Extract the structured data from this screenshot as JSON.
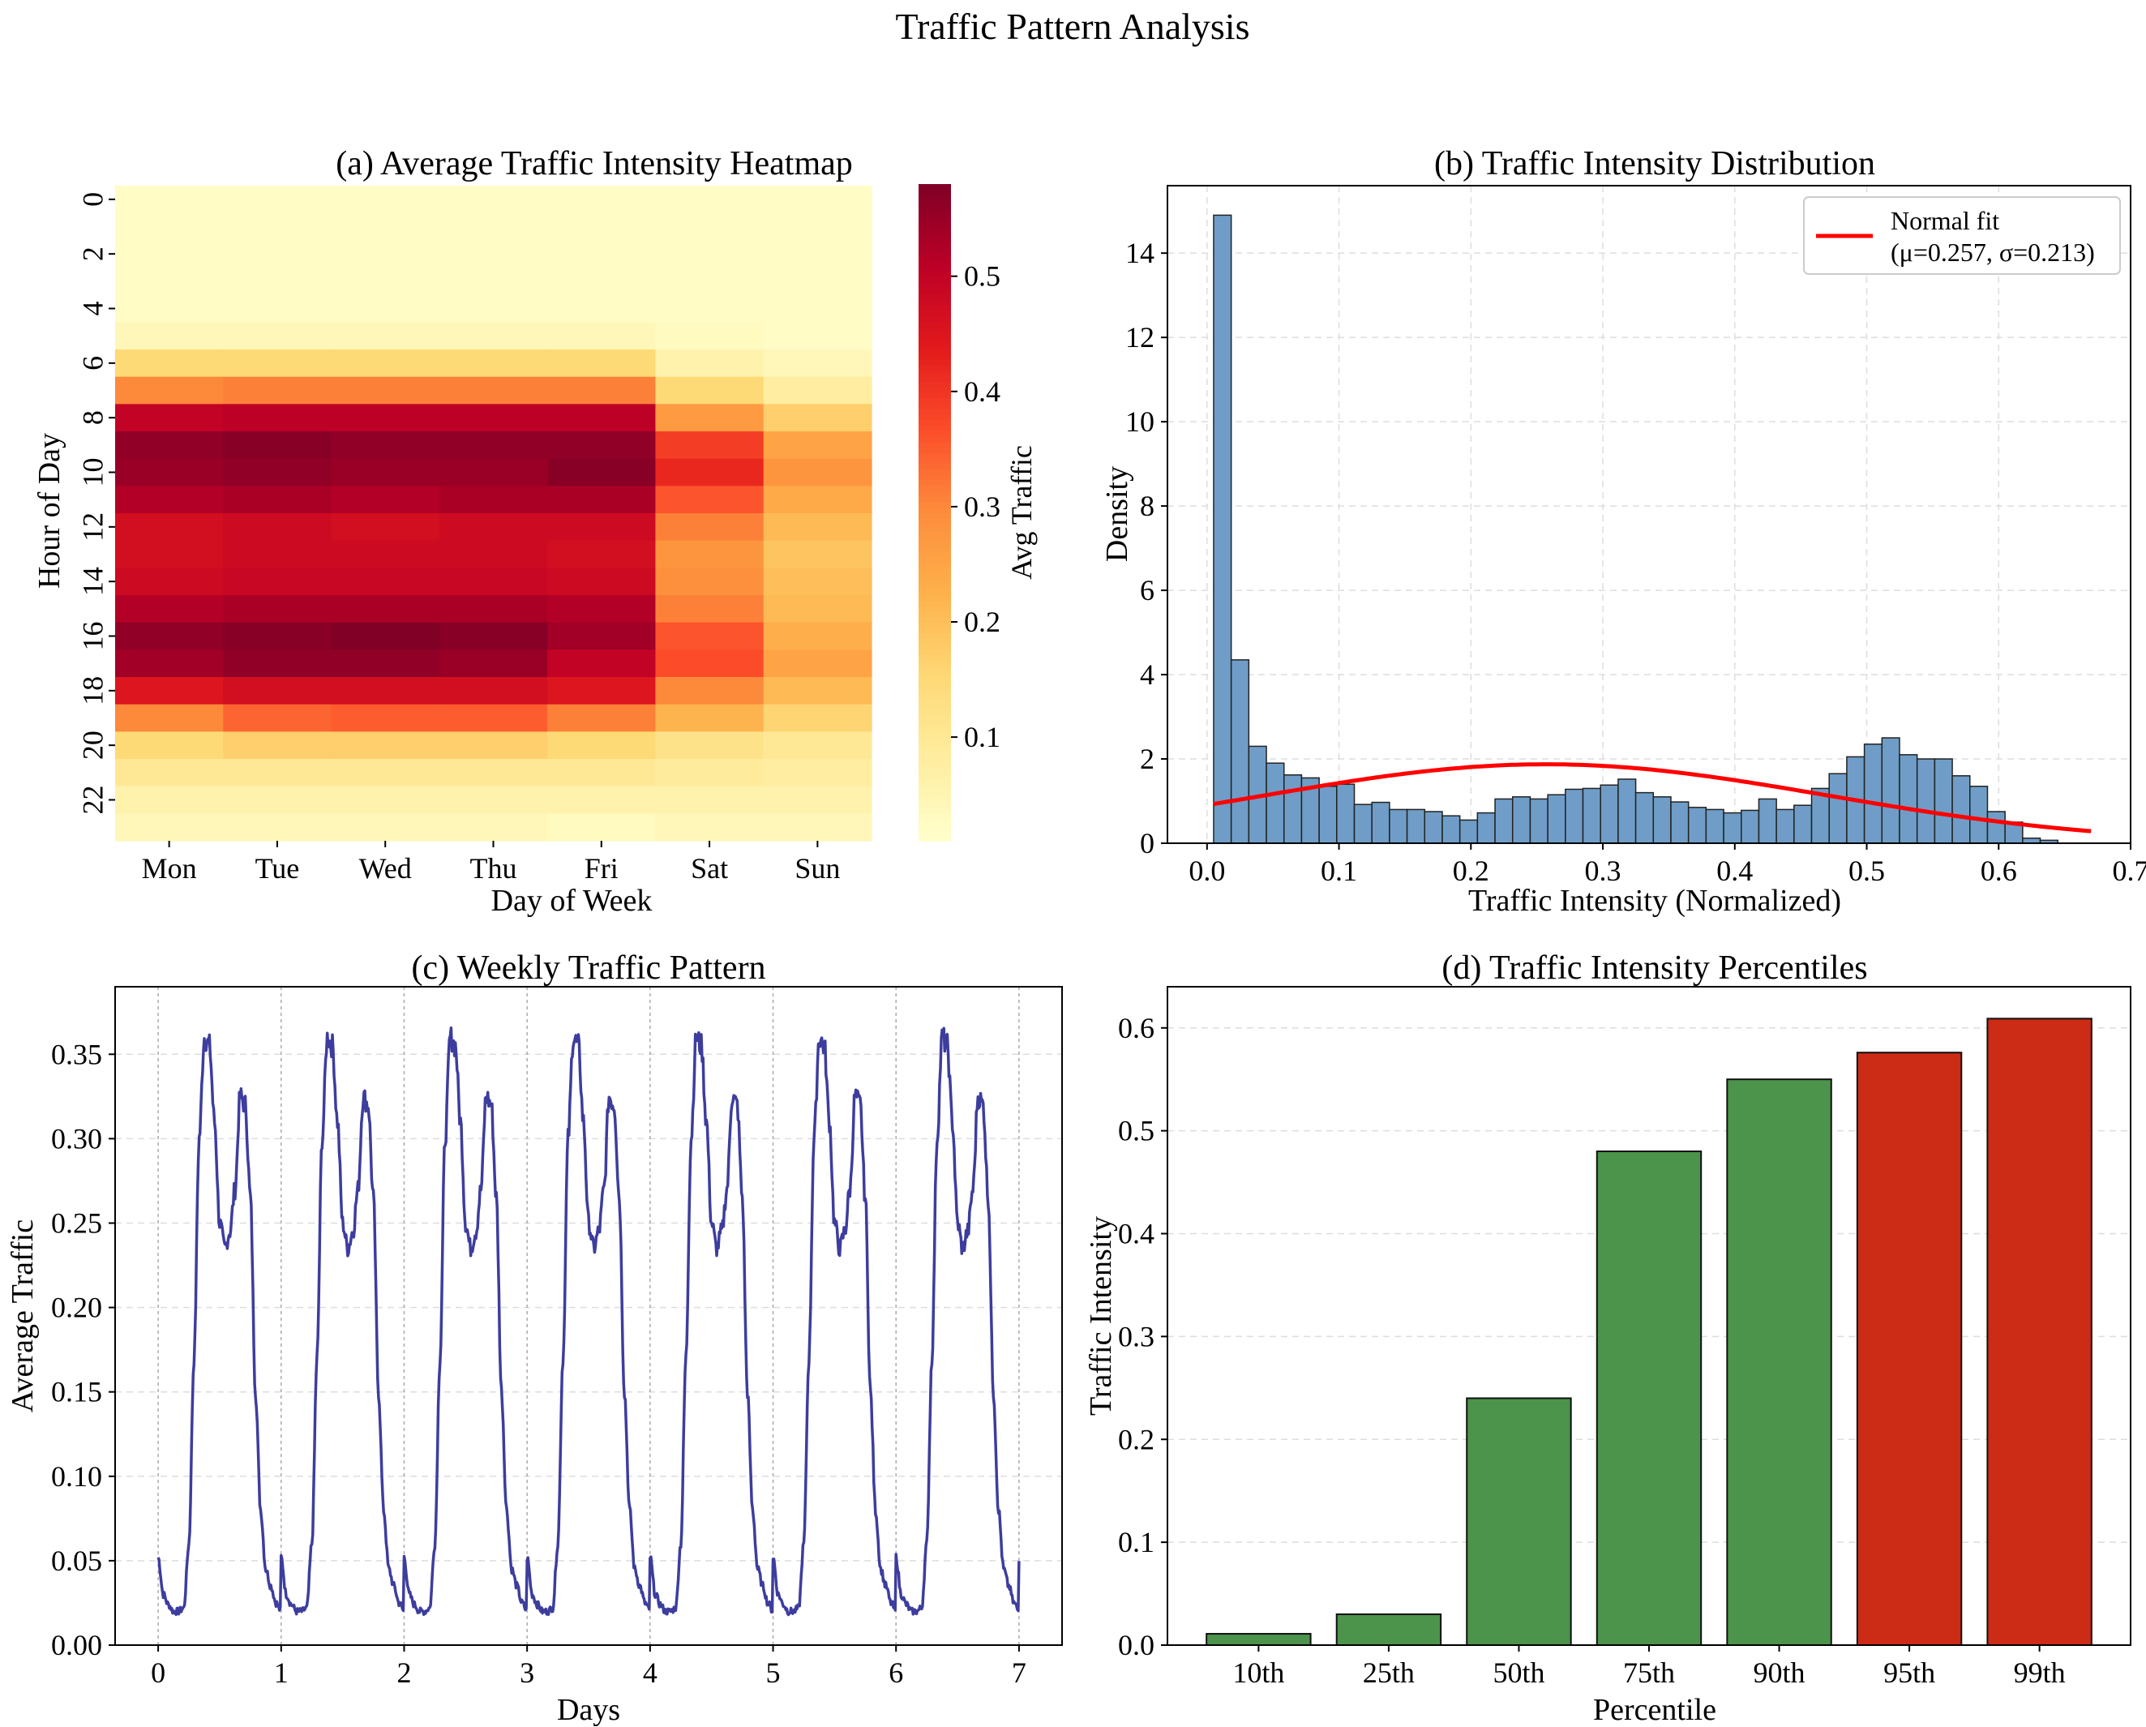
{
  "figure": {
    "suptitle": "Traffic Pattern Analysis"
  },
  "chart_data": [
    {
      "type": "heatmap",
      "title": "(a) Average Traffic Intensity Heatmap",
      "xlabel": "Day of Week",
      "ylabel": "Hour of Day",
      "x_categories": [
        "Mon",
        "Tue",
        "Wed",
        "Thu",
        "Fri",
        "Sat",
        "Sun"
      ],
      "y_categories": [
        "0",
        "1",
        "2",
        "3",
        "4",
        "5",
        "6",
        "7",
        "8",
        "9",
        "10",
        "11",
        "12",
        "13",
        "14",
        "15",
        "16",
        "17",
        "18",
        "19",
        "20",
        "21",
        "22",
        "23"
      ],
      "y_tick_labels": [
        "0",
        "2",
        "4",
        "6",
        "8",
        "10",
        "12",
        "14",
        "16",
        "18",
        "20",
        "22"
      ],
      "colorbar": {
        "label": "Avg Traffic",
        "range": [
          0.01,
          0.58
        ],
        "ticks": [
          "0.1",
          "0.2",
          "0.3",
          "0.4",
          "0.5"
        ],
        "colormap": "YlOrRd"
      },
      "values": [
        [
          0.02,
          0.02,
          0.02,
          0.02,
          0.02,
          0.02,
          0.02
        ],
        [
          0.02,
          0.02,
          0.02,
          0.02,
          0.02,
          0.02,
          0.02
        ],
        [
          0.02,
          0.02,
          0.02,
          0.02,
          0.02,
          0.02,
          0.02
        ],
        [
          0.02,
          0.02,
          0.02,
          0.02,
          0.02,
          0.02,
          0.02
        ],
        [
          0.02,
          0.02,
          0.02,
          0.02,
          0.02,
          0.02,
          0.02
        ],
        [
          0.04,
          0.04,
          0.04,
          0.04,
          0.04,
          0.03,
          0.02
        ],
        [
          0.15,
          0.15,
          0.15,
          0.15,
          0.15,
          0.06,
          0.04
        ],
        [
          0.3,
          0.31,
          0.31,
          0.31,
          0.31,
          0.15,
          0.08
        ],
        [
          0.5,
          0.51,
          0.51,
          0.51,
          0.51,
          0.27,
          0.17
        ],
        [
          0.56,
          0.57,
          0.56,
          0.56,
          0.56,
          0.39,
          0.25
        ],
        [
          0.55,
          0.56,
          0.55,
          0.55,
          0.57,
          0.42,
          0.28
        ],
        [
          0.52,
          0.53,
          0.52,
          0.53,
          0.53,
          0.36,
          0.24
        ],
        [
          0.47,
          0.48,
          0.47,
          0.48,
          0.48,
          0.31,
          0.21
        ],
        [
          0.47,
          0.48,
          0.48,
          0.48,
          0.47,
          0.28,
          0.19
        ],
        [
          0.48,
          0.49,
          0.49,
          0.49,
          0.48,
          0.29,
          0.2
        ],
        [
          0.52,
          0.53,
          0.53,
          0.53,
          0.52,
          0.31,
          0.21
        ],
        [
          0.56,
          0.57,
          0.58,
          0.57,
          0.54,
          0.36,
          0.23
        ],
        [
          0.54,
          0.56,
          0.56,
          0.55,
          0.5,
          0.37,
          0.25
        ],
        [
          0.45,
          0.47,
          0.47,
          0.47,
          0.45,
          0.3,
          0.21
        ],
        [
          0.3,
          0.34,
          0.35,
          0.35,
          0.31,
          0.22,
          0.16
        ],
        [
          0.15,
          0.17,
          0.17,
          0.17,
          0.15,
          0.12,
          0.1
        ],
        [
          0.1,
          0.1,
          0.1,
          0.1,
          0.1,
          0.09,
          0.08
        ],
        [
          0.06,
          0.06,
          0.06,
          0.06,
          0.06,
          0.06,
          0.06
        ],
        [
          0.04,
          0.04,
          0.04,
          0.04,
          0.03,
          0.04,
          0.04
        ]
      ]
    },
    {
      "type": "bar",
      "subtype": "histogram",
      "title": "(b) Traffic Intensity Distribution",
      "xlabel": "Traffic Intensity (Normalized)",
      "ylabel": "Density",
      "xlim": [
        -0.03,
        0.7
      ],
      "ylim": [
        0,
        15.6
      ],
      "x_ticks": [
        "0.0",
        "0.1",
        "0.2",
        "0.3",
        "0.4",
        "0.5",
        "0.6",
        "0.7"
      ],
      "y_ticks": [
        "0",
        "2",
        "4",
        "6",
        "8",
        "10",
        "12",
        "14"
      ],
      "bin_start": 0.005,
      "bin_width": 0.01333,
      "densities": [
        14.9,
        4.35,
        2.3,
        1.9,
        1.62,
        1.55,
        1.35,
        1.4,
        0.92,
        0.97,
        0.8,
        0.8,
        0.75,
        0.65,
        0.55,
        0.72,
        1.05,
        1.1,
        1.05,
        1.15,
        1.28,
        1.3,
        1.38,
        1.52,
        1.2,
        1.1,
        0.98,
        0.85,
        0.8,
        0.72,
        0.78,
        1.05,
        0.8,
        0.9,
        1.3,
        1.65,
        2.05,
        2.35,
        2.5,
        2.1,
        2.0,
        2.0,
        1.6,
        1.35,
        0.75,
        0.5,
        0.12,
        0.07
      ],
      "bar_color": "#6f9dc7",
      "legend": {
        "label_line1": "Normal fit",
        "label_line2": "(μ=0.257, σ=0.213)",
        "position": "upper right"
      },
      "fit": {
        "mu": 0.257,
        "sigma": 0.213,
        "x_range": [
          0.005,
          0.67
        ],
        "color": "#ff0000"
      }
    },
    {
      "type": "line",
      "title": "(c) Weekly Traffic Pattern",
      "xlabel": "Days",
      "ylabel": "Average Traffic",
      "xlim": [
        -0.35,
        7.35
      ],
      "ylim": [
        0,
        0.39
      ],
      "x_ticks": [
        "0",
        "1",
        "2",
        "3",
        "4",
        "5",
        "6",
        "7"
      ],
      "y_ticks": [
        "0.00",
        "0.05",
        "0.10",
        "0.15",
        "0.20",
        "0.25",
        "0.30",
        "0.35"
      ],
      "day_period": 1,
      "daily_profile_hours": [
        0,
        1,
        2,
        3,
        4,
        5,
        6,
        7,
        8,
        9,
        10,
        11,
        12,
        13,
        14,
        15,
        16,
        17,
        18,
        19,
        20,
        21,
        22,
        23,
        24
      ],
      "daily_profile_values": [
        0.052,
        0.03,
        0.024,
        0.02,
        0.02,
        0.022,
        0.06,
        0.17,
        0.3,
        0.36,
        0.355,
        0.31,
        0.25,
        0.235,
        0.245,
        0.27,
        0.325,
        0.32,
        0.265,
        0.15,
        0.08,
        0.045,
        0.035,
        0.025,
        0.02
      ],
      "line_color": "#3d3d9e"
    },
    {
      "type": "bar",
      "title": "(d) Traffic Intensity Percentiles",
      "xlabel": "Percentile",
      "ylabel": "Traffic Intensity",
      "categories": [
        "10th",
        "25th",
        "50th",
        "75th",
        "90th",
        "95th",
        "99th"
      ],
      "values": [
        0.011,
        0.03,
        0.24,
        0.48,
        0.55,
        0.576,
        0.609
      ],
      "colors": [
        "#4c934c",
        "#4c934c",
        "#4c934c",
        "#4c934c",
        "#4c934c",
        "#cc2b16",
        "#cc2b16"
      ],
      "ylim": [
        0,
        0.64
      ],
      "y_ticks": [
        "0.0",
        "0.1",
        "0.2",
        "0.3",
        "0.4",
        "0.5",
        "0.6"
      ]
    }
  ]
}
